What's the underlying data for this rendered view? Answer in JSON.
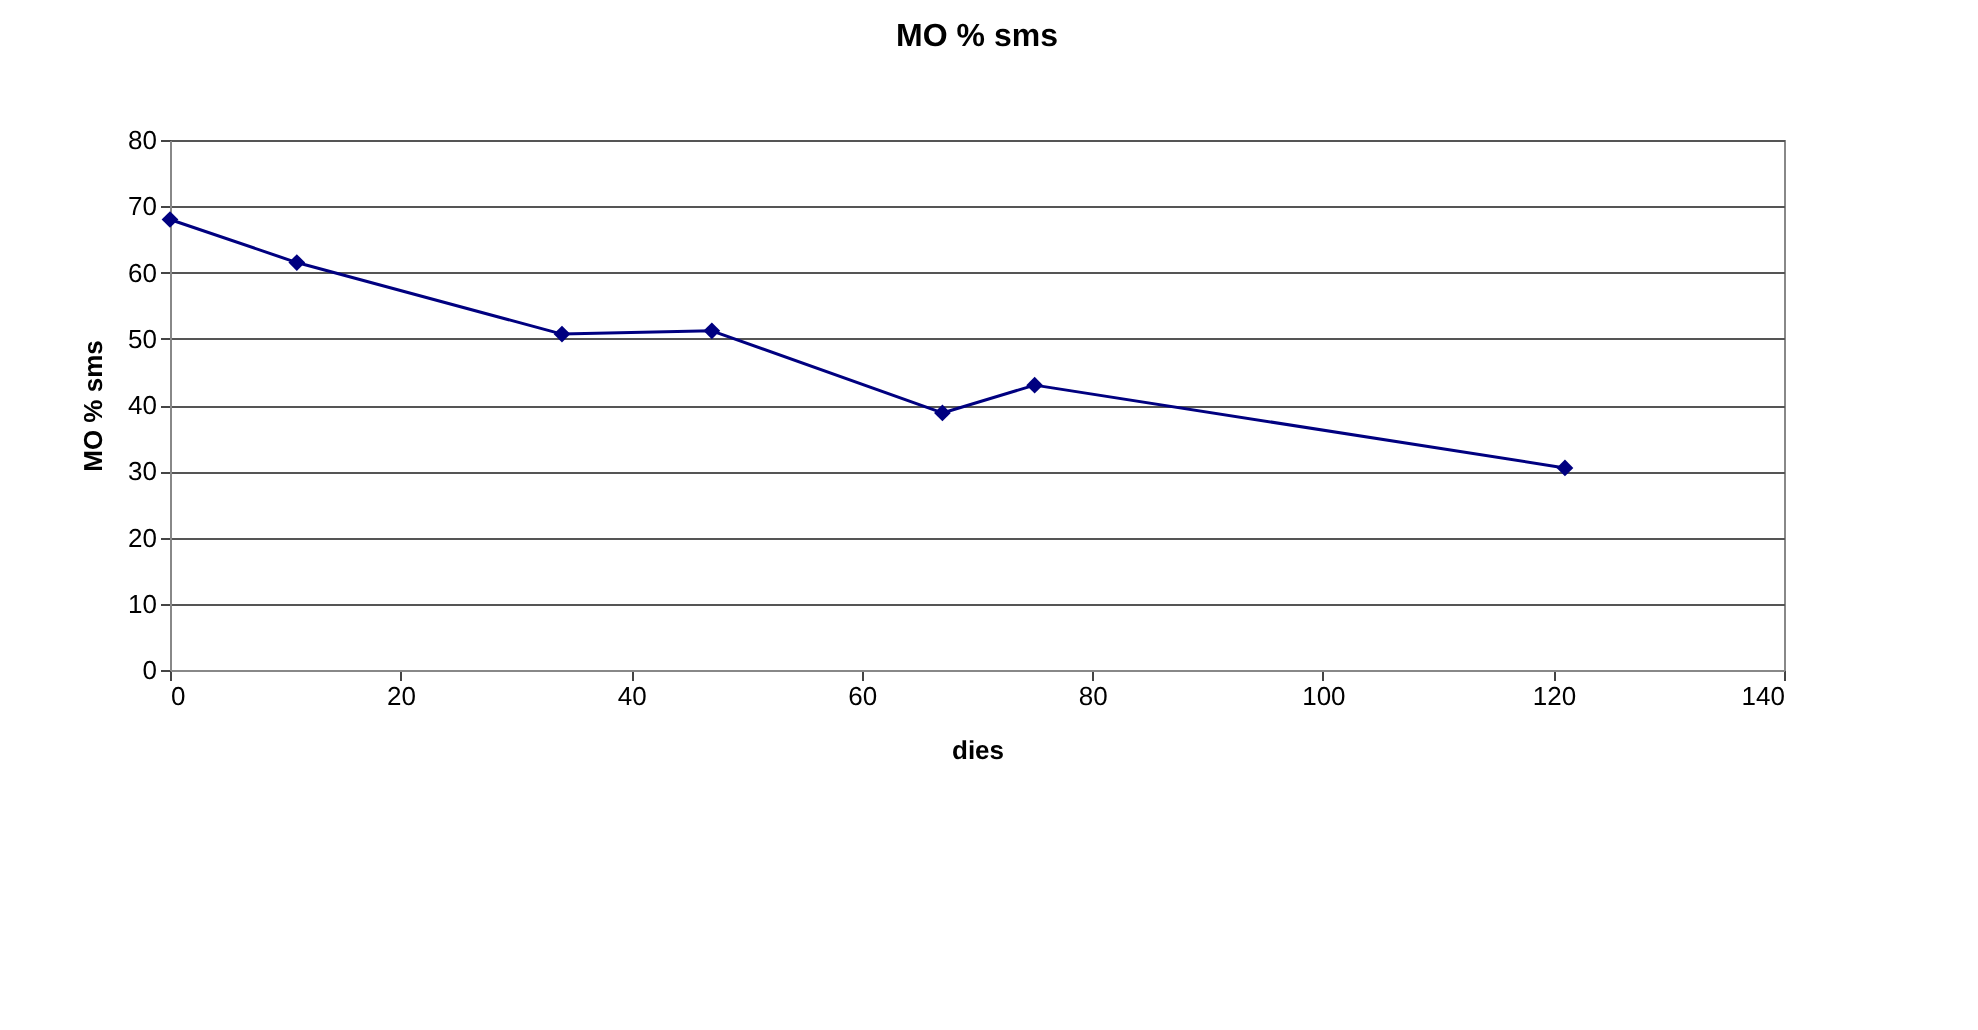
{
  "chart_data": {
    "type": "line",
    "title": "MO % sms",
    "xlabel": "dies",
    "ylabel": "MO % sms",
    "x": [
      0,
      11,
      34,
      47,
      67,
      75,
      121
    ],
    "series": [
      {
        "color": "#000080",
        "values": [
          68,
          61.5,
          50.7,
          51.2,
          38.8,
          43,
          30.5
        ]
      }
    ],
    "xlim": [
      0,
      140
    ],
    "xticks": [
      0,
      20,
      40,
      60,
      80,
      100,
      120,
      140
    ],
    "ylim": [
      0,
      80
    ],
    "yticks": [
      0,
      10,
      20,
      30,
      40,
      50,
      60,
      70,
      80
    ],
    "grid": "y",
    "marker": "diamond",
    "line_style": "solid"
  }
}
